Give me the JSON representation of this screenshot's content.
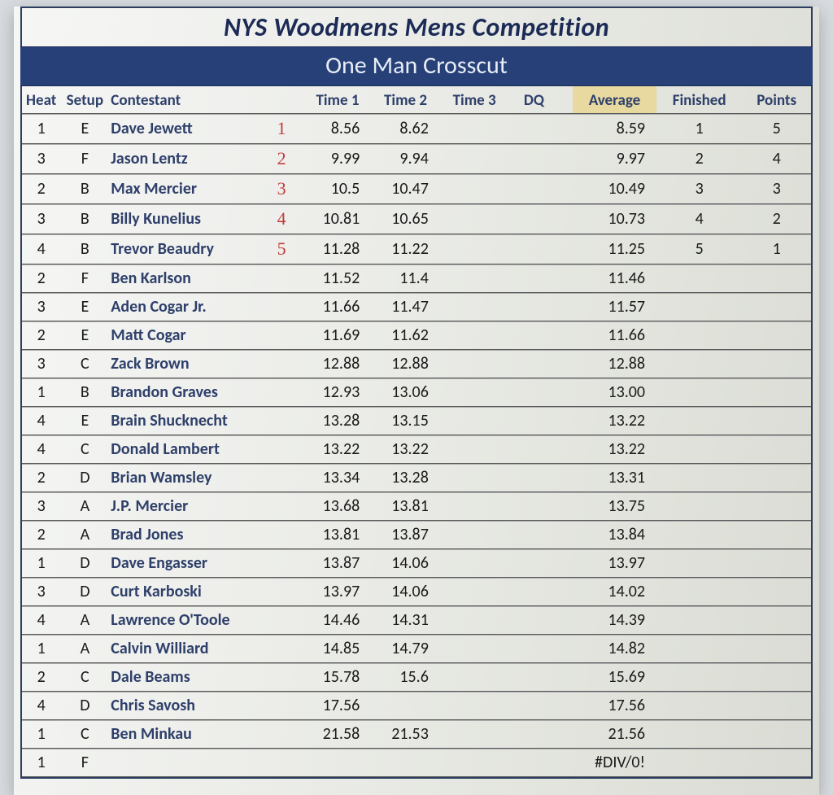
{
  "title": "NYS Woodmens Mens Competition",
  "subtitle": "One Man Crosscut",
  "columns": {
    "heat": "Heat",
    "setup": "Setup",
    "contestant": "Contestant",
    "time1": "Time 1",
    "time2": "Time 2",
    "time3": "Time 3",
    "dq": "DQ",
    "average": "Average",
    "finished": "Finished",
    "points": "Points"
  },
  "colors": {
    "header_text": "#2e3f6a",
    "subtitle_bg": "#274078",
    "avg_highlight": "#e7d9a0",
    "handwritten": "#c23b3b"
  },
  "rows": [
    {
      "heat": "1",
      "setup": "E",
      "name": "Dave Jewett",
      "rank": "1",
      "t1": "8.56",
      "t2": "8.62",
      "t3": "",
      "dq": "",
      "avg": "8.59",
      "fin": "1",
      "pts": "5"
    },
    {
      "heat": "3",
      "setup": "F",
      "name": "Jason Lentz",
      "rank": "2",
      "t1": "9.99",
      "t2": "9.94",
      "t3": "",
      "dq": "",
      "avg": "9.97",
      "fin": "2",
      "pts": "4"
    },
    {
      "heat": "2",
      "setup": "B",
      "name": "Max Mercier",
      "rank": "3",
      "t1": "10.5",
      "t2": "10.47",
      "t3": "",
      "dq": "",
      "avg": "10.49",
      "fin": "3",
      "pts": "3"
    },
    {
      "heat": "3",
      "setup": "B",
      "name": "Billy Kunelius",
      "rank": "4",
      "t1": "10.81",
      "t2": "10.65",
      "t3": "",
      "dq": "",
      "avg": "10.73",
      "fin": "4",
      "pts": "2"
    },
    {
      "heat": "4",
      "setup": "B",
      "name": "Trevor Beaudry",
      "rank": "5",
      "t1": "11.28",
      "t2": "11.22",
      "t3": "",
      "dq": "",
      "avg": "11.25",
      "fin": "5",
      "pts": "1"
    },
    {
      "heat": "2",
      "setup": "F",
      "name": "Ben Karlson",
      "rank": "",
      "t1": "11.52",
      "t2": "11.4",
      "t3": "",
      "dq": "",
      "avg": "11.46",
      "fin": "",
      "pts": ""
    },
    {
      "heat": "3",
      "setup": "E",
      "name": "Aden Cogar Jr.",
      "rank": "",
      "t1": "11.66",
      "t2": "11.47",
      "t3": "",
      "dq": "",
      "avg": "11.57",
      "fin": "",
      "pts": ""
    },
    {
      "heat": "2",
      "setup": "E",
      "name": "Matt Cogar",
      "rank": "",
      "t1": "11.69",
      "t2": "11.62",
      "t3": "",
      "dq": "",
      "avg": "11.66",
      "fin": "",
      "pts": ""
    },
    {
      "heat": "3",
      "setup": "C",
      "name": "Zack Brown",
      "rank": "",
      "t1": "12.88",
      "t2": "12.88",
      "t3": "",
      "dq": "",
      "avg": "12.88",
      "fin": "",
      "pts": ""
    },
    {
      "heat": "1",
      "setup": "B",
      "name": "Brandon Graves",
      "rank": "",
      "t1": "12.93",
      "t2": "13.06",
      "t3": "",
      "dq": "",
      "avg": "13.00",
      "fin": "",
      "pts": ""
    },
    {
      "heat": "4",
      "setup": "E",
      "name": "Brain Shucknecht",
      "rank": "",
      "t1": "13.28",
      "t2": "13.15",
      "t3": "",
      "dq": "",
      "avg": "13.22",
      "fin": "",
      "pts": ""
    },
    {
      "heat": "4",
      "setup": "C",
      "name": "Donald Lambert",
      "rank": "",
      "t1": "13.22",
      "t2": "13.22",
      "t3": "",
      "dq": "",
      "avg": "13.22",
      "fin": "",
      "pts": ""
    },
    {
      "heat": "2",
      "setup": "D",
      "name": "Brian Wamsley",
      "rank": "",
      "t1": "13.34",
      "t2": "13.28",
      "t3": "",
      "dq": "",
      "avg": "13.31",
      "fin": "",
      "pts": ""
    },
    {
      "heat": "3",
      "setup": "A",
      "name": "J.P. Mercier",
      "rank": "",
      "t1": "13.68",
      "t2": "13.81",
      "t3": "",
      "dq": "",
      "avg": "13.75",
      "fin": "",
      "pts": ""
    },
    {
      "heat": "2",
      "setup": "A",
      "name": "Brad Jones",
      "rank": "",
      "t1": "13.81",
      "t2": "13.87",
      "t3": "",
      "dq": "",
      "avg": "13.84",
      "fin": "",
      "pts": ""
    },
    {
      "heat": "1",
      "setup": "D",
      "name": "Dave Engasser",
      "rank": "",
      "t1": "13.87",
      "t2": "14.06",
      "t3": "",
      "dq": "",
      "avg": "13.97",
      "fin": "",
      "pts": ""
    },
    {
      "heat": "3",
      "setup": "D",
      "name": "Curt Karboski",
      "rank": "",
      "t1": "13.97",
      "t2": "14.06",
      "t3": "",
      "dq": "",
      "avg": "14.02",
      "fin": "",
      "pts": ""
    },
    {
      "heat": "4",
      "setup": "A",
      "name": "Lawrence O'Toole",
      "rank": "",
      "t1": "14.46",
      "t2": "14.31",
      "t3": "",
      "dq": "",
      "avg": "14.39",
      "fin": "",
      "pts": ""
    },
    {
      "heat": "1",
      "setup": "A",
      "name": "Calvin Williard",
      "rank": "",
      "t1": "14.85",
      "t2": "14.79",
      "t3": "",
      "dq": "",
      "avg": "14.82",
      "fin": "",
      "pts": ""
    },
    {
      "heat": "2",
      "setup": "C",
      "name": "Dale Beams",
      "rank": "",
      "t1": "15.78",
      "t2": "15.6",
      "t3": "",
      "dq": "",
      "avg": "15.69",
      "fin": "",
      "pts": ""
    },
    {
      "heat": "4",
      "setup": "D",
      "name": "Chris Savosh",
      "rank": "",
      "t1": "17.56",
      "t2": "",
      "t3": "",
      "dq": "",
      "avg": "17.56",
      "fin": "",
      "pts": ""
    },
    {
      "heat": "1",
      "setup": "C",
      "name": "Ben Minkau",
      "rank": "",
      "t1": "21.58",
      "t2": "21.53",
      "t3": "",
      "dq": "",
      "avg": "21.56",
      "fin": "",
      "pts": ""
    },
    {
      "heat": "1",
      "setup": "F",
      "name": "",
      "rank": "",
      "t1": "",
      "t2": "",
      "t3": "",
      "dq": "",
      "avg": "#DIV/0!",
      "fin": "",
      "pts": ""
    }
  ]
}
